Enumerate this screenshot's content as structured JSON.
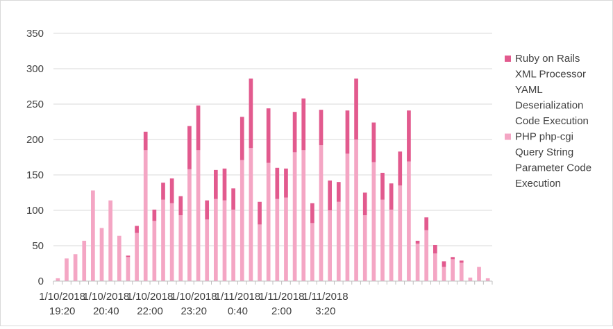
{
  "chart_data": {
    "type": "bar",
    "stacked": true,
    "title": "",
    "xlabel": "",
    "ylabel": "",
    "ylim": [
      0,
      350
    ],
    "yticks": [
      0,
      50,
      100,
      150,
      200,
      250,
      300,
      350
    ],
    "grid": true,
    "legend_position": "right",
    "x_tick_labels": [
      [
        "1/10/2018",
        "19:20"
      ],
      [
        "1/10/2018",
        "20:40"
      ],
      [
        "1/10/2018",
        "22:00"
      ],
      [
        "1/10/2018",
        "23:20"
      ],
      [
        "1/11/2018",
        "0:40"
      ],
      [
        "1/11/2018",
        "2:00"
      ],
      [
        "1/11/2018",
        "3:20"
      ]
    ],
    "x_tick_every": 5,
    "series": [
      {
        "name": "PHP php-cgi Query String Parameter Code Execution",
        "color": "#f4a6c4",
        "values": [
          4,
          32,
          38,
          57,
          128,
          75,
          114,
          64,
          34,
          68,
          185,
          85,
          115,
          110,
          93,
          158,
          185,
          87,
          116,
          114,
          101,
          171,
          188,
          80,
          167,
          116,
          118,
          182,
          185,
          82,
          192,
          100,
          112,
          180,
          200,
          93,
          168,
          115,
          101,
          135,
          169,
          53,
          72,
          39,
          20,
          31,
          26,
          5,
          20,
          4
        ]
      },
      {
        "name": "Ruby on Rails XML Processor YAML Deserialization Code Execution",
        "color": "#e25a8e",
        "values": [
          0,
          0,
          0,
          0,
          0,
          0,
          0,
          0,
          2,
          10,
          26,
          16,
          24,
          35,
          27,
          61,
          63,
          27,
          41,
          45,
          30,
          61,
          98,
          32,
          77,
          44,
          41,
          57,
          73,
          28,
          50,
          42,
          28,
          61,
          86,
          32,
          56,
          38,
          37,
          48,
          72,
          4,
          18,
          12,
          8,
          3,
          3,
          0,
          0,
          0
        ]
      }
    ]
  }
}
